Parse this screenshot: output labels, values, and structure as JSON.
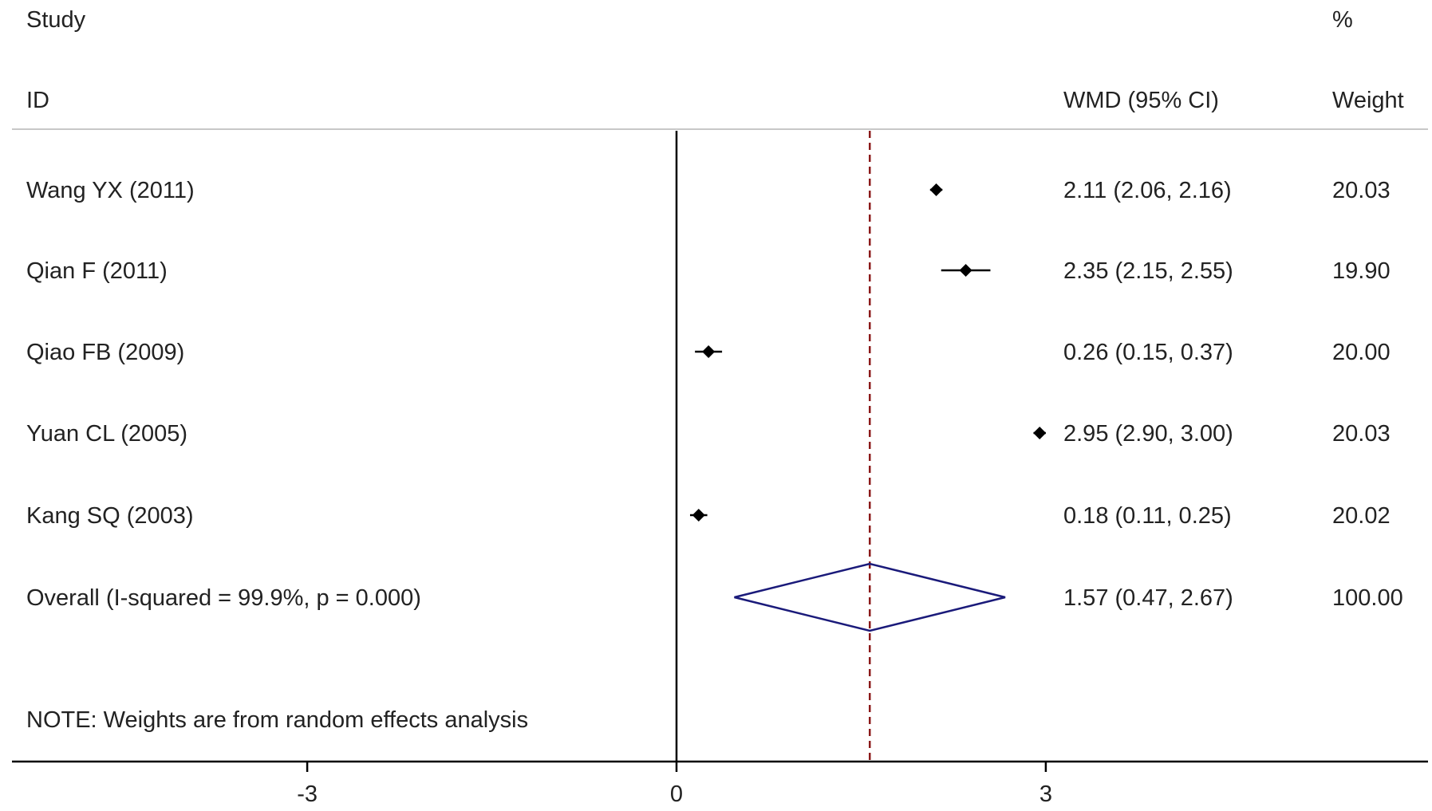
{
  "chart_data": {
    "type": "forest",
    "headers": {
      "study_top": "Study",
      "study_bottom": "ID",
      "effect": "WMD (95% CI)",
      "weight_top": "%",
      "weight_bottom": "Weight"
    },
    "studies": [
      {
        "label": "Wang YX (2011)",
        "est": 2.11,
        "lo": 2.06,
        "hi": 2.16,
        "ci_text": "2.11 (2.06, 2.16)",
        "weight_text": "20.03"
      },
      {
        "label": "Qian F (2011)",
        "est": 2.35,
        "lo": 2.15,
        "hi": 2.55,
        "ci_text": "2.35 (2.15, 2.55)",
        "weight_text": "19.90"
      },
      {
        "label": "Qiao FB (2009)",
        "est": 0.26,
        "lo": 0.15,
        "hi": 0.37,
        "ci_text": "0.26 (0.15, 0.37)",
        "weight_text": "20.00"
      },
      {
        "label": "Yuan CL (2005)",
        "est": 2.95,
        "lo": 2.9,
        "hi": 3.0,
        "ci_text": "2.95 (2.90, 3.00)",
        "weight_text": "20.03"
      },
      {
        "label": "Kang SQ (2003)",
        "est": 0.18,
        "lo": 0.11,
        "hi": 0.25,
        "ci_text": "0.18 (0.11, 0.25)",
        "weight_text": "20.02"
      }
    ],
    "overall": {
      "label": "Overall  (I-squared = 99.9%, p = 0.000)",
      "est": 1.57,
      "lo": 0.47,
      "hi": 2.67,
      "ci_text": "1.57 (0.47, 2.67)",
      "weight_text": "100.00"
    },
    "note": "NOTE: Weights are from random effects analysis",
    "x_ticks": [
      -3,
      0,
      3
    ],
    "x_tick_labels": [
      "-3",
      "0",
      "3"
    ],
    "null_line": 0,
    "colors": {
      "diamond": "#1a1a7a",
      "overall_line": "#8b1a1a",
      "marks": "#000000",
      "text": "#222222"
    }
  }
}
